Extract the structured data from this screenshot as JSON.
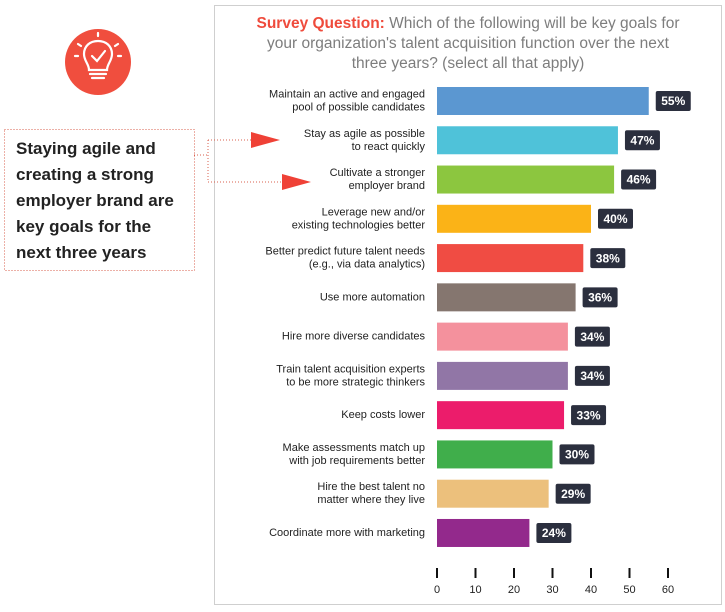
{
  "callout": "Staying agile and\ncreating a strong\nemployer brand are\nkey goals for the\nnext three years",
  "chart_data": {
    "type": "bar",
    "orientation": "horizontal",
    "title": "Survey Question:",
    "subtitle": "Which of the following will be key goals for\nyour organization's talent acquisition function over the next\nthree years? (select all that apply)",
    "categories": [
      "Maintain an active and engaged\npool of possible candidates",
      "Stay as agile as possible\nto react quickly",
      "Cultivate a stronger\nemployer brand",
      "Leverage new and/or\nexisting technologies better",
      "Better predict future talent needs\n(e.g., via data analytics)",
      "Use more automation",
      "Hire more diverse candidates",
      "Train talent acquisition experts\nto be more strategic thinkers",
      "Keep costs lower",
      "Make assessments match up\nwith job requirements better",
      "Hire the best talent no\nmatter where they live",
      "Coordinate more with marketing"
    ],
    "values": [
      55,
      47,
      46,
      40,
      38,
      36,
      34,
      34,
      33,
      30,
      29,
      24
    ],
    "value_labels": [
      "55%",
      "47%",
      "46%",
      "40%",
      "38%",
      "36%",
      "34%",
      "34%",
      "33%",
      "30%",
      "29%",
      "24%"
    ],
    "colors": [
      "#5b97d1",
      "#4fc2d9",
      "#8cc63f",
      "#fbb317",
      "#f04c43",
      "#85766f",
      "#f4919d",
      "#9176a6",
      "#ec1c6b",
      "#40ae4b",
      "#ecc07c",
      "#93298c"
    ],
    "xlim": [
      0,
      60
    ],
    "xticks": [
      0,
      10,
      20,
      30,
      40,
      50,
      60
    ]
  }
}
